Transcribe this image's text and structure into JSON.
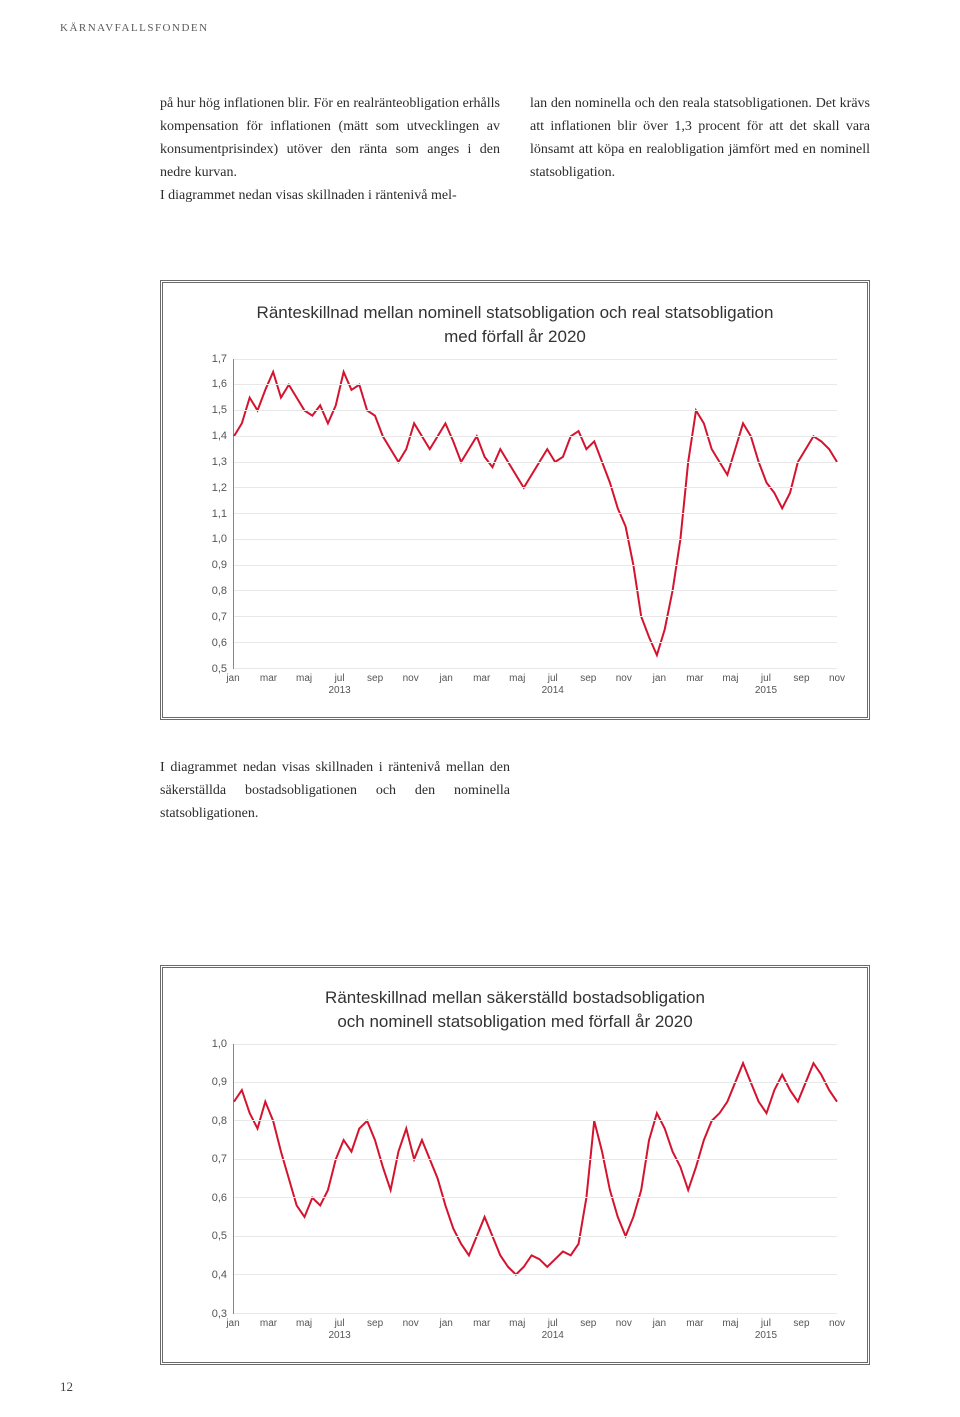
{
  "header": "KÄRNAVFALLSFONDEN",
  "page_number": "12",
  "para1_col1": "på hur hög inflationen blir. För en realränteobligation erhålls kompensation för inflationen (mätt som utvecklingen av konsumentprisindex) utöver den ränta som anges i den nedre kurvan.",
  "para1_col1b": "I diagrammet nedan visas skillnaden i räntenivå mel-",
  "para1_col2": "lan den nominella och den reala statsobligationen. Det krävs att inflationen blir över 1,3 procent för att det skall vara lönsamt att köpa en realobligation jämfört med en nominell statsobligation.",
  "mid_para": "I diagrammet nedan visas skillnaden i räntenivå mellan den säkerställda bostadsobligationen och den nominella statsobligationen.",
  "chart1": {
    "title_l1": "Ränteskillnad mellan nominell statsobligation och real statsobligation",
    "title_l2": "med förfall år 2020",
    "title_fontsize": 17,
    "line_color": "#d4132e",
    "bg": "#ffffff",
    "grid_color": "#e8e8e8",
    "ylim": [
      0.5,
      1.7
    ],
    "yticks": [
      "0,5",
      "0,6",
      "0,7",
      "0,8",
      "0,9",
      "1,0",
      "1,1",
      "1,2",
      "1,3",
      "1,4",
      "1,5",
      "1,6",
      "1,7"
    ],
    "xticks": [
      {
        "label": "jan",
        "year": ""
      },
      {
        "label": "mar",
        "year": ""
      },
      {
        "label": "maj",
        "year": ""
      },
      {
        "label": "jul",
        "year": "2013"
      },
      {
        "label": "sep",
        "year": ""
      },
      {
        "label": "nov",
        "year": ""
      },
      {
        "label": "jan",
        "year": ""
      },
      {
        "label": "mar",
        "year": ""
      },
      {
        "label": "maj",
        "year": ""
      },
      {
        "label": "jul",
        "year": "2014"
      },
      {
        "label": "sep",
        "year": ""
      },
      {
        "label": "nov",
        "year": ""
      },
      {
        "label": "jan",
        "year": ""
      },
      {
        "label": "mar",
        "year": ""
      },
      {
        "label": "maj",
        "year": ""
      },
      {
        "label": "jul",
        "year": "2015"
      },
      {
        "label": "sep",
        "year": ""
      },
      {
        "label": "nov",
        "year": ""
      }
    ],
    "values": [
      1.4,
      1.45,
      1.55,
      1.5,
      1.58,
      1.65,
      1.55,
      1.6,
      1.55,
      1.5,
      1.48,
      1.52,
      1.45,
      1.52,
      1.65,
      1.58,
      1.6,
      1.5,
      1.48,
      1.4,
      1.35,
      1.3,
      1.35,
      1.45,
      1.4,
      1.35,
      1.4,
      1.45,
      1.38,
      1.3,
      1.35,
      1.4,
      1.32,
      1.28,
      1.35,
      1.3,
      1.25,
      1.2,
      1.25,
      1.3,
      1.35,
      1.3,
      1.32,
      1.4,
      1.42,
      1.35,
      1.38,
      1.3,
      1.22,
      1.12,
      1.05,
      0.9,
      0.7,
      0.62,
      0.55,
      0.65,
      0.8,
      1.0,
      1.3,
      1.5,
      1.45,
      1.35,
      1.3,
      1.25,
      1.35,
      1.45,
      1.4,
      1.3,
      1.22,
      1.18,
      1.12,
      1.18,
      1.3,
      1.35,
      1.4,
      1.38,
      1.35,
      1.3
    ]
  },
  "chart2": {
    "title_l1": "Ränteskillnad mellan säkerställd bostadsobligation",
    "title_l2": "och nominell statsobligation med förfall år 2020",
    "title_fontsize": 17,
    "line_color": "#d4132e",
    "bg": "#ffffff",
    "grid_color": "#e8e8e8",
    "ylim": [
      0.3,
      1.0
    ],
    "yticks": [
      "0,3",
      "0,4",
      "0,5",
      "0,6",
      "0,7",
      "0,8",
      "0,9",
      "1,0"
    ],
    "xticks": [
      {
        "label": "jan",
        "year": ""
      },
      {
        "label": "mar",
        "year": ""
      },
      {
        "label": "maj",
        "year": ""
      },
      {
        "label": "jul",
        "year": "2013"
      },
      {
        "label": "sep",
        "year": ""
      },
      {
        "label": "nov",
        "year": ""
      },
      {
        "label": "jan",
        "year": ""
      },
      {
        "label": "mar",
        "year": ""
      },
      {
        "label": "maj",
        "year": ""
      },
      {
        "label": "jul",
        "year": "2014"
      },
      {
        "label": "sep",
        "year": ""
      },
      {
        "label": "nov",
        "year": ""
      },
      {
        "label": "jan",
        "year": ""
      },
      {
        "label": "mar",
        "year": ""
      },
      {
        "label": "maj",
        "year": ""
      },
      {
        "label": "jul",
        "year": "2015"
      },
      {
        "label": "sep",
        "year": ""
      },
      {
        "label": "nov",
        "year": ""
      }
    ],
    "values": [
      0.85,
      0.88,
      0.82,
      0.78,
      0.85,
      0.8,
      0.72,
      0.65,
      0.58,
      0.55,
      0.6,
      0.58,
      0.62,
      0.7,
      0.75,
      0.72,
      0.78,
      0.8,
      0.75,
      0.68,
      0.62,
      0.72,
      0.78,
      0.7,
      0.75,
      0.7,
      0.65,
      0.58,
      0.52,
      0.48,
      0.45,
      0.5,
      0.55,
      0.5,
      0.45,
      0.42,
      0.4,
      0.42,
      0.45,
      0.44,
      0.42,
      0.44,
      0.46,
      0.45,
      0.48,
      0.6,
      0.8,
      0.72,
      0.62,
      0.55,
      0.5,
      0.55,
      0.62,
      0.75,
      0.82,
      0.78,
      0.72,
      0.68,
      0.62,
      0.68,
      0.75,
      0.8,
      0.82,
      0.85,
      0.9,
      0.95,
      0.9,
      0.85,
      0.82,
      0.88,
      0.92,
      0.88,
      0.85,
      0.9,
      0.95,
      0.92,
      0.88,
      0.85
    ]
  }
}
